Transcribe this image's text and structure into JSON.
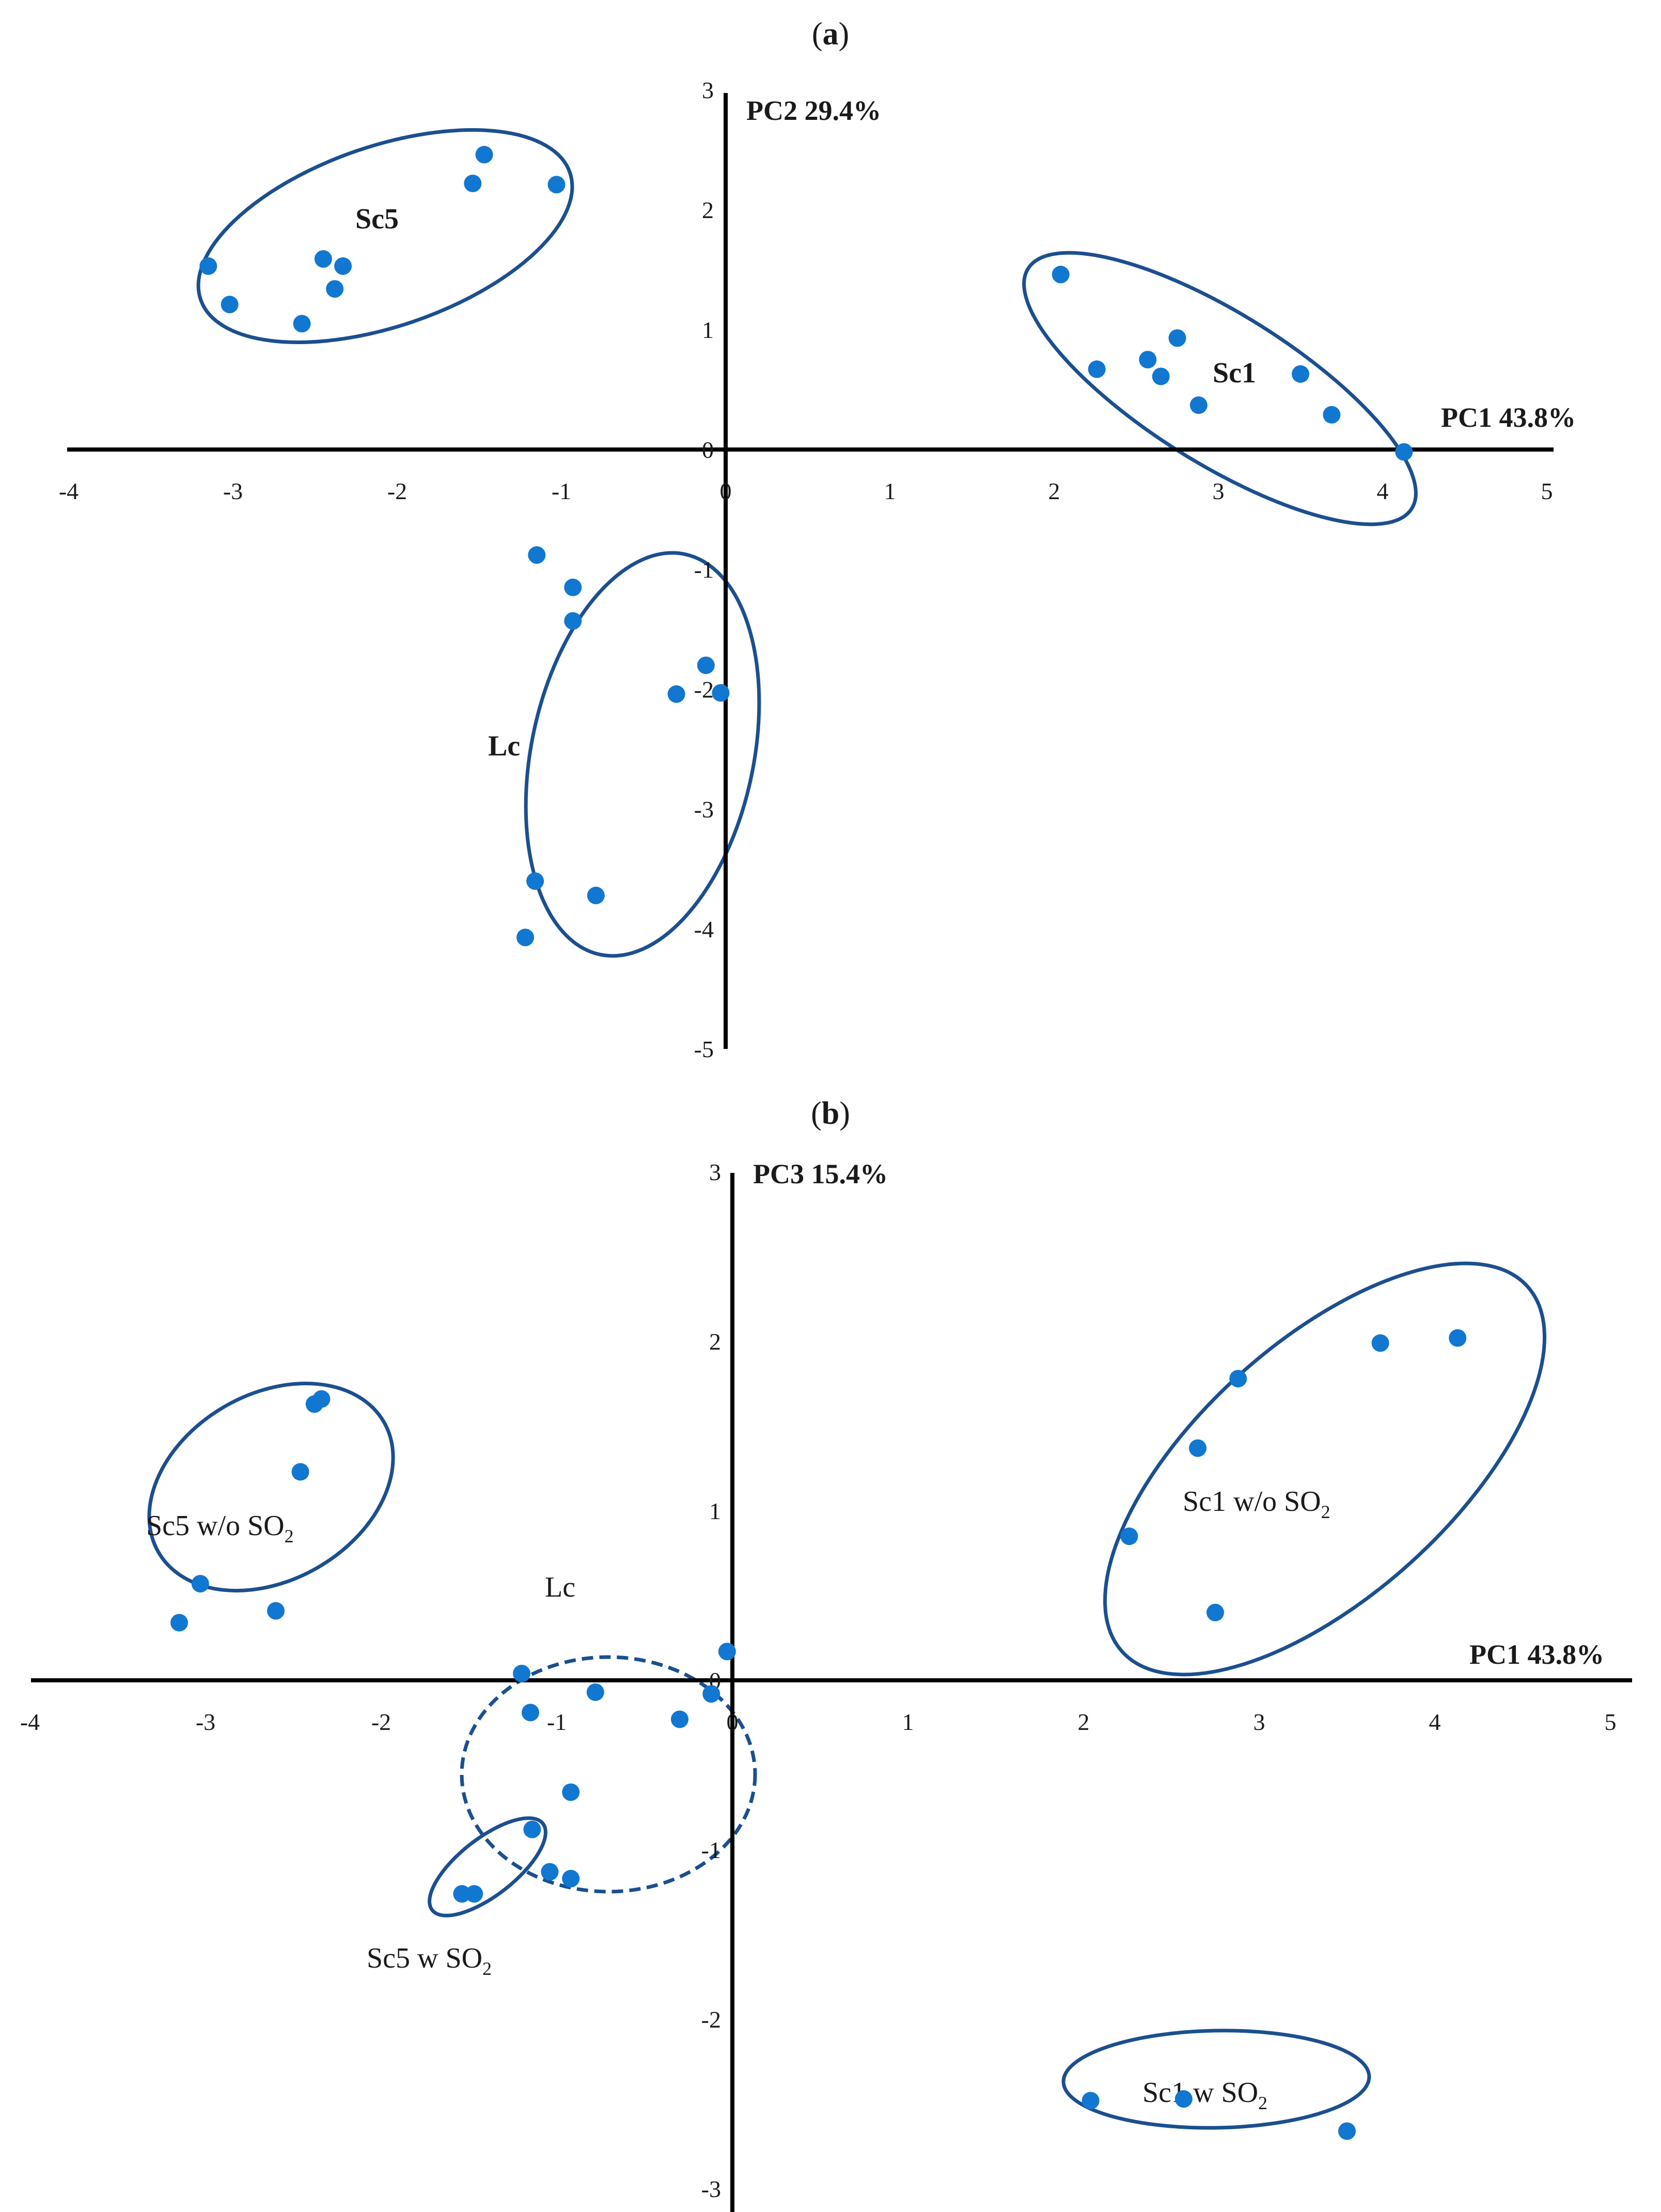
{
  "colors": {
    "point": "#1177d1",
    "ellipse": "#1b4f8f",
    "axis": "#000000",
    "text": "#1a1a1a"
  },
  "chart_data": [
    {
      "type": "scatter",
      "panel_label": {
        "open": "(",
        "letter": "a",
        "close": ")"
      },
      "xlabel": "PC1 43.8%",
      "ylabel": "PC2 29.4%",
      "xlim": [
        -4,
        5
      ],
      "ylim": [
        -5,
        3
      ],
      "x_ticks": [
        -4,
        -3,
        -2,
        -1,
        0,
        1,
        2,
        3,
        4,
        5
      ],
      "y_ticks": [
        3,
        2,
        1,
        0,
        -1,
        -2,
        -3,
        -4,
        -5
      ],
      "groups": [
        {
          "name": "Sc5",
          "style": "solid",
          "bold": true,
          "points": [
            [
              -3.15,
              1.53
            ],
            [
              -3.02,
              1.21
            ],
            [
              -2.58,
              1.05
            ],
            [
              -2.45,
              1.59
            ],
            [
              -2.38,
              1.34
            ],
            [
              -2.33,
              1.53
            ],
            [
              -1.54,
              2.22
            ],
            [
              -1.47,
              2.46
            ],
            [
              -1.03,
              2.21
            ]
          ]
        },
        {
          "name": "Sc1",
          "style": "solid",
          "bold": true,
          "points": [
            [
              2.04,
              1.46
            ],
            [
              2.26,
              0.67
            ],
            [
              2.57,
              0.75
            ],
            [
              2.65,
              0.61
            ],
            [
              2.75,
              0.93
            ],
            [
              2.88,
              0.37
            ],
            [
              3.5,
              0.63
            ],
            [
              3.69,
              0.29
            ],
            [
              4.13,
              -0.02
            ]
          ]
        },
        {
          "name": "Lc",
          "style": "solid",
          "bold": true,
          "points": [
            [
              -1.15,
              -0.88
            ],
            [
              -0.93,
              -1.15
            ],
            [
              -0.93,
              -1.43
            ],
            [
              -0.12,
              -1.8
            ],
            [
              -0.3,
              -2.04
            ],
            [
              -0.03,
              -2.03
            ],
            [
              -1.16,
              -3.6
            ],
            [
              -0.79,
              -3.72
            ],
            [
              -1.22,
              -4.07
            ]
          ]
        }
      ]
    },
    {
      "type": "scatter",
      "panel_label": {
        "open": "(",
        "letter": "b",
        "close": ")"
      },
      "xlabel": "PC1 43.8%",
      "ylabel": "PC3 15.4%",
      "xlim": [
        -4,
        5
      ],
      "ylim": [
        -3,
        3
      ],
      "x_ticks": [
        -4,
        -3,
        -2,
        -1,
        0,
        1,
        2,
        3,
        4,
        5
      ],
      "y_ticks": [
        3,
        2,
        1,
        0,
        -1,
        -2,
        -3
      ],
      "groups": [
        {
          "name": "Sc5 w/o SO",
          "subscript": "2",
          "style": "solid",
          "points": [
            [
              -2.38,
              1.63
            ],
            [
              -2.34,
              1.66
            ],
            [
              -2.46,
              1.23
            ],
            [
              -3.03,
              0.57
            ],
            [
              -3.15,
              0.34
            ],
            [
              -2.6,
              0.41
            ]
          ]
        },
        {
          "name": "Sc1 w/o SO",
          "subscript": "2",
          "style": "solid",
          "points": [
            [
              2.26,
              0.85
            ],
            [
              2.65,
              1.37
            ],
            [
              2.88,
              1.78
            ],
            [
              2.75,
              0.4
            ],
            [
              3.69,
              1.99
            ],
            [
              4.13,
              2.02
            ]
          ]
        },
        {
          "name": "Lc",
          "style": "dashed",
          "points": [
            [
              -0.03,
              0.17
            ],
            [
              -1.2,
              0.04
            ],
            [
              -0.78,
              -0.07
            ],
            [
              -0.12,
              -0.08
            ],
            [
              -1.15,
              -0.19
            ],
            [
              -0.3,
              -0.23
            ],
            [
              -0.92,
              -0.66
            ]
          ]
        },
        {
          "name": "Sc5 w SO",
          "subscript": "2",
          "style": "solid",
          "points": [
            [
              -1.14,
              -0.88
            ],
            [
              -1.04,
              -1.13
            ],
            [
              -0.92,
              -1.17
            ],
            [
              -1.54,
              -1.26
            ],
            [
              -1.47,
              -1.26
            ]
          ]
        },
        {
          "name": "Sc1 w SO",
          "subscript": "2",
          "style": "solid",
          "points": [
            [
              2.04,
              -2.48
            ],
            [
              2.57,
              -2.47
            ],
            [
              3.5,
              -2.66
            ]
          ]
        }
      ]
    }
  ]
}
